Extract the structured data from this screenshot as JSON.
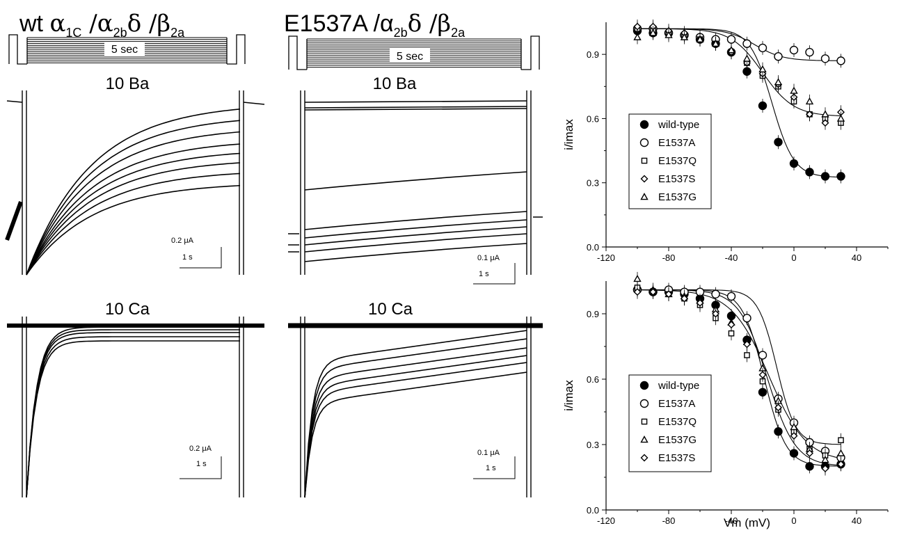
{
  "titles": {
    "wt_prefix": "wt ",
    "wt_alpha": "α",
    "wt_alpha_sub": "1C",
    "wt_mid": " /α",
    "wt_mid_sub": "2b",
    "wt_delta": "δ /β",
    "wt_beta_sub": "2a",
    "mut_prefix": "E1537A /α",
    "mut_mid_sub": "2b",
    "mut_delta": "δ /β",
    "mut_beta_sub": "2a"
  },
  "protocol": {
    "duration_label": "5 sec"
  },
  "trace_labels": {
    "ba_left": "10 Ba",
    "ba_right": "10 Ba",
    "ca_left": "10 Ca",
    "ca_right": "10 Ca"
  },
  "scale_bars": {
    "ba_left_current": "0.2 μA",
    "ba_left_time": "1 s",
    "ba_right_current": "0.1 μA",
    "ba_right_time": "1 s",
    "ca_left_current": "0.2 μA",
    "ca_left_time": "1 s",
    "ca_right_current": "0.1 μA",
    "ca_right_time": "1 s"
  },
  "chart_data": [
    {
      "type": "scatter",
      "panel": "top",
      "ylabel": "i/imax",
      "xlabel": "",
      "xlim": [
        -120,
        60
      ],
      "ylim": [
        0.0,
        1.05
      ],
      "xticks": [
        -120,
        -80,
        -40,
        0,
        40
      ],
      "yticks": [
        "0.0",
        "0.3",
        "0.6",
        "0.9"
      ],
      "legend_position": "center",
      "series": [
        {
          "name": "wild-type",
          "marker": "filled-circle",
          "x": [
            -100,
            -90,
            -80,
            -70,
            -60,
            -50,
            -40,
            -30,
            -20,
            -10,
            0,
            10,
            20,
            30
          ],
          "y": [
            1.01,
            1.0,
            1.0,
            0.99,
            0.97,
            0.95,
            0.91,
            0.82,
            0.66,
            0.49,
            0.39,
            0.35,
            0.33,
            0.33
          ]
        },
        {
          "name": "E1537A",
          "marker": "open-circle",
          "x": [
            -100,
            -90,
            -80,
            -70,
            -60,
            -50,
            -40,
            -30,
            -20,
            -10,
            0,
            10,
            20,
            30
          ],
          "y": [
            1.02,
            1.02,
            1.0,
            0.99,
            0.98,
            0.97,
            0.97,
            0.95,
            0.93,
            0.89,
            0.92,
            0.91,
            0.88,
            0.87
          ]
        },
        {
          "name": "E1537Q",
          "marker": "open-square",
          "x": [
            -100,
            -90,
            -80,
            -70,
            -60,
            -50,
            -40,
            -30,
            -20,
            -10,
            0,
            10,
            20,
            30
          ],
          "y": [
            1.02,
            1.01,
            1.0,
            0.99,
            0.97,
            0.95,
            0.91,
            0.86,
            0.8,
            0.75,
            0.68,
            0.62,
            0.6,
            0.58
          ]
        },
        {
          "name": "E1537S",
          "marker": "open-diamond",
          "x": [
            -100,
            -90,
            -80,
            -70,
            -60,
            -50,
            -40,
            -30,
            -20,
            -10,
            0,
            10,
            20,
            30
          ],
          "y": [
            1.03,
            1.03,
            1.01,
            1.0,
            0.97,
            0.95,
            0.91,
            0.86,
            0.81,
            0.76,
            0.7,
            0.62,
            0.58,
            0.63
          ]
        },
        {
          "name": "E1537G",
          "marker": "open-triangle",
          "x": [
            -100,
            -90,
            -80,
            -70,
            -60,
            -50,
            -40,
            -30,
            -20,
            -10,
            0,
            10,
            20,
            30
          ],
          "y": [
            0.98,
            1.0,
            0.99,
            0.98,
            0.97,
            0.95,
            0.92,
            0.88,
            0.83,
            0.77,
            0.73,
            0.68,
            0.62,
            0.6
          ]
        }
      ],
      "fits": [
        {
          "series": "wild-type",
          "top": 1.02,
          "bottom": 0.325,
          "v_half": -14,
          "slope": 7
        },
        {
          "series": "E1537A",
          "top": 1.02,
          "bottom": 0.87,
          "v_half": -25,
          "slope": 9
        },
        {
          "series": "E1537Q",
          "top": 1.02,
          "bottom": 0.61,
          "v_half": -20,
          "slope": 10
        }
      ]
    },
    {
      "type": "scatter",
      "panel": "bottom",
      "ylabel": "i/imax",
      "xlabel": "Vm (mV)",
      "xlim": [
        -120,
        60
      ],
      "ylim": [
        0.0,
        1.05
      ],
      "xticks": [
        -120,
        -80,
        -40,
        0,
        40
      ],
      "yticks": [
        "0.0",
        "0.3",
        "0.6",
        "0.9"
      ],
      "legend_position": "bottom-left",
      "series": [
        {
          "name": "wild-type",
          "marker": "filled-circle",
          "x": [
            -100,
            -90,
            -80,
            -70,
            -60,
            -50,
            -40,
            -30,
            -20,
            -10,
            0,
            10,
            20,
            30
          ],
          "y": [
            1.01,
            1.0,
            1.0,
            0.99,
            0.97,
            0.94,
            0.89,
            0.78,
            0.54,
            0.36,
            0.26,
            0.2,
            0.2,
            0.21
          ]
        },
        {
          "name": "E1537A",
          "marker": "open-circle",
          "x": [
            -100,
            -90,
            -80,
            -70,
            -60,
            -50,
            -40,
            -30,
            -20,
            -10,
            0,
            10,
            20,
            30
          ],
          "y": [
            1.01,
            1.0,
            1.01,
            1.0,
            1.0,
            0.99,
            0.98,
            0.88,
            0.71,
            0.51,
            0.4,
            0.31,
            0.27,
            0.24
          ]
        },
        {
          "name": "E1537Q",
          "marker": "open-square",
          "x": [
            -100,
            -90,
            -80,
            -70,
            -60,
            -50,
            -40,
            -30,
            -20,
            -10,
            0,
            10,
            20,
            30
          ],
          "y": [
            1.02,
            1.0,
            0.99,
            0.97,
            0.94,
            0.88,
            0.81,
            0.71,
            0.59,
            0.46,
            0.36,
            0.28,
            0.25,
            0.32
          ]
        },
        {
          "name": "E1537G",
          "marker": "open-triangle",
          "x": [
            -100,
            -90,
            -80,
            -70,
            -60,
            -50,
            -40,
            -30,
            -20,
            -10,
            0,
            10,
            20,
            30
          ],
          "y": [
            1.06,
            1.01,
            0.99,
            0.98,
            0.96,
            0.92,
            0.86,
            0.77,
            0.65,
            0.5,
            0.38,
            0.28,
            0.23,
            0.26
          ]
        },
        {
          "name": "E1537S",
          "marker": "open-diamond",
          "x": [
            -100,
            -90,
            -80,
            -70,
            -60,
            -50,
            -40,
            -30,
            -20,
            -10,
            0,
            10,
            20,
            30
          ],
          "y": [
            1.0,
            1.0,
            0.99,
            0.97,
            0.95,
            0.9,
            0.85,
            0.76,
            0.62,
            0.47,
            0.34,
            0.26,
            0.19,
            0.21
          ]
        }
      ],
      "fits": [
        {
          "series": "wild-type",
          "top": 1.01,
          "bottom": 0.2,
          "v_half": -19,
          "slope": 7
        },
        {
          "series": "E1537A",
          "top": 1.01,
          "bottom": 0.3,
          "v_half": -11,
          "slope": 6
        },
        {
          "series": "E1537Q",
          "top": 1.01,
          "bottom": 0.22,
          "v_half": -16,
          "slope": 12
        },
        {
          "series": "E1537S",
          "top": 1.01,
          "bottom": 0.2,
          "v_half": -17,
          "slope": 9
        }
      ]
    }
  ]
}
